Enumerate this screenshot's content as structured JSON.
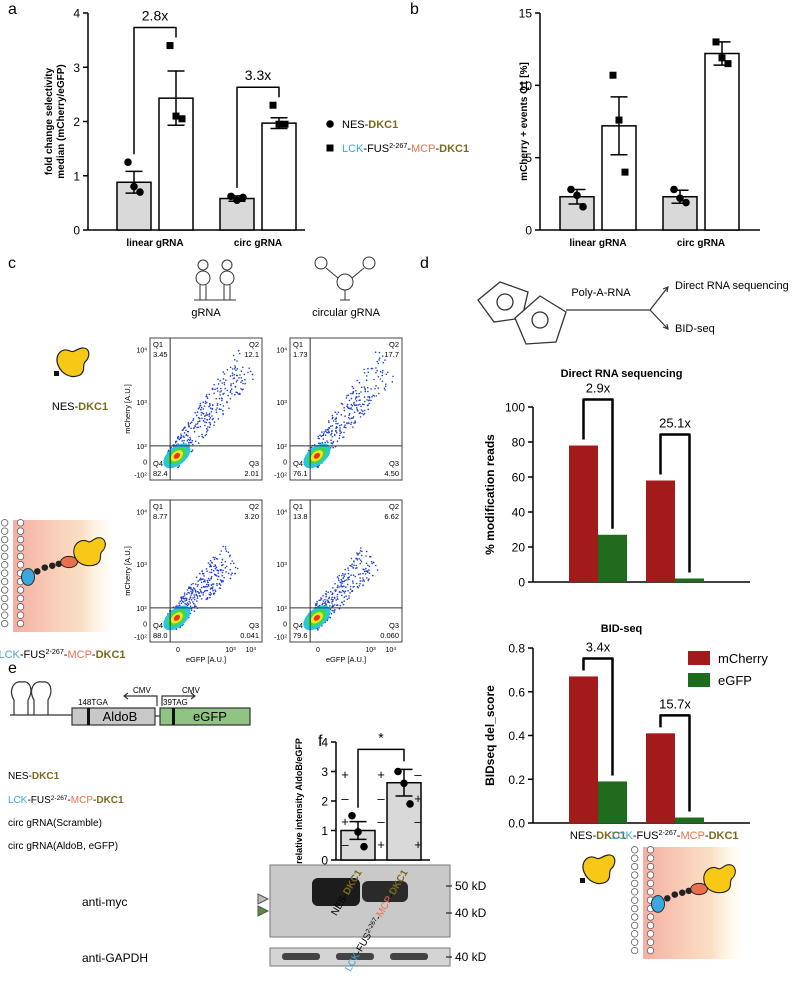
{
  "panel_labels": [
    "a",
    "b",
    "c",
    "d",
    "e",
    "f"
  ],
  "chart_data": [
    {
      "type": "bar",
      "ylabel": [
        "fold change selectivity",
        "median (mCherry/eGFP)"
      ],
      "categories": [
        "linear gRNA",
        "circ gRNA"
      ],
      "series": [
        {
          "name": [
            {
              "text": "NES-"
            },
            {
              "text": "DKC1",
              "color": "#7a6a1f",
              "bold": true
            }
          ],
          "color": "#d9d9d9",
          "marker": "circle",
          "values": [
            0.88,
            0.58
          ],
          "errors": [
            0.2,
            0.05
          ],
          "points": [
            [
              1.25,
              0.8,
              0.7
            ],
            [
              0.62,
              0.55,
              0.6
            ]
          ]
        },
        {
          "name": [
            {
              "text": "LCK",
              "color": "#3aa8de"
            },
            {
              "text": "-FUS"
            },
            {
              "text": "2-267",
              "sup": true
            },
            {
              "text": "-"
            },
            {
              "text": "MCP",
              "color": "#e8704f"
            },
            {
              "text": "-"
            },
            {
              "text": "DKC1",
              "color": "#7a6a1f",
              "bold": true
            }
          ],
          "color": "#ffffff",
          "marker": "square",
          "values": [
            2.43,
            1.97
          ],
          "errors": [
            0.5,
            0.1
          ],
          "points": [
            [
              3.4,
              2.1,
              2.05
            ],
            [
              2.3,
              1.95,
              1.95
            ]
          ]
        }
      ],
      "ylim": [
        0,
        4
      ],
      "yticks": [
        0,
        1,
        2,
        3,
        4
      ],
      "annotations": [
        "2.8x",
        "3.3x"
      ]
    },
    {
      "type": "bar",
      "ylabel": "mCherry + events Q1 [%]",
      "categories": [
        "linear gRNA",
        "circ gRNA"
      ],
      "series": [
        {
          "color": "#d9d9d9",
          "marker": "circle",
          "values": [
            2.3,
            2.3
          ],
          "errors": [
            0.5,
            0.45
          ],
          "points": [
            [
              2.8,
              2.4,
              1.6
            ],
            [
              2.8,
              2.2,
              1.9
            ]
          ]
        },
        {
          "color": "#ffffff",
          "marker": "square",
          "values": [
            7.2,
            12.2
          ],
          "errors": [
            2.0,
            0.8
          ],
          "points": [
            [
              10.7,
              7.6,
              4.0
            ],
            [
              13.0,
              11.9,
              11.5
            ]
          ]
        }
      ],
      "ylim": [
        0,
        15
      ],
      "yticks": [
        0,
        5,
        10,
        15
      ]
    },
    {
      "type": "bar",
      "title": "Direct RNA sequencing",
      "ylabel": "% modification reads",
      "series": [
        {
          "color": "#a31a1a",
          "values": [
            78,
            58
          ]
        },
        {
          "color": "#1e6b1e",
          "values": [
            27,
            2
          ]
        }
      ],
      "ylim": [
        0,
        100
      ],
      "yticks": [
        0,
        20,
        40,
        60,
        80,
        100
      ],
      "annotations": [
        "2.9x",
        "25.1x"
      ]
    },
    {
      "type": "bar",
      "title": "BID-seq",
      "ylabel": "BIDseq del_score",
      "categories": [
        [
          {
            "text": "NES-"
          },
          {
            "text": "DKC1",
            "color": "#7a6a1f",
            "bold": true
          }
        ],
        [
          {
            "text": "LCK",
            "color": "#3aa8de"
          },
          {
            "text": "-FUS"
          },
          {
            "text": "2-267",
            "sup": true
          },
          {
            "text": "-"
          },
          {
            "text": "MCP",
            "color": "#e8704f"
          },
          {
            "text": "-"
          },
          {
            "text": "DKC1",
            "color": "#7a6a1f",
            "bold": true
          }
        ]
      ],
      "series": [
        {
          "name": "mCherry",
          "color": "#a31a1a",
          "values": [
            0.67,
            0.41
          ]
        },
        {
          "name": "eGFP",
          "color": "#1e6b1e",
          "values": [
            0.19,
            0.025
          ]
        }
      ],
      "ylim": [
        0,
        0.8
      ],
      "yticks": [
        {
          "value": 0,
          "label": "0.0"
        },
        0.2,
        0.4,
        0.6,
        0.8
      ],
      "annotations": [
        "3.4x",
        "15.7x"
      ],
      "legend": "right"
    },
    {
      "type": "bar",
      "ylabel": "relative intensity AldoB/eGFP",
      "categories": [
        [
          {
            "text": "NES-"
          },
          {
            "text": "DKC1",
            "color": "#7a6a1f",
            "bold": true
          }
        ],
        [
          {
            "text": "LCK",
            "color": "#3aa8de"
          },
          {
            "text": "-FUS"
          },
          {
            "text": "2-267",
            "sup": true
          },
          {
            "text": "-"
          },
          {
            "text": "MCP",
            "color": "#e8704f"
          },
          {
            "text": "-"
          },
          {
            "text": "DKC1",
            "color": "#7a6a1f",
            "bold": true
          }
        ]
      ],
      "series": [
        {
          "color": "#d9d9d9",
          "marker": "circle",
          "values": [
            1.0,
            2.62
          ],
          "errors": [
            0.3,
            0.45
          ],
          "points": [
            [
              1.5,
              0.95,
              0.45
            ],
            [
              3.0,
              2.6,
              1.9
            ]
          ]
        }
      ],
      "ylim": [
        0,
        4
      ],
      "yticks": [
        0,
        1,
        2,
        3,
        4
      ],
      "annotations": [
        "*"
      ]
    }
  ],
  "flow": {
    "columns": [
      "gRNA",
      "circular gRNA"
    ],
    "rows": [
      [
        {
          "text": "NES-"
        },
        {
          "text": "DKC1",
          "color": "#7a6a1f",
          "bold": true
        }
      ],
      [
        {
          "text": "LCK",
          "color": "#3aa8de"
        },
        {
          "text": "-FUS"
        },
        {
          "text": "2-267",
          "sup": true
        },
        {
          "text": "-"
        },
        {
          "text": "MCP",
          "color": "#e8704f"
        },
        {
          "text": "-"
        },
        {
          "text": "DKC1",
          "color": "#7a6a1f",
          "bold": true
        }
      ]
    ],
    "ylabel": "mCherry [A.U.]",
    "xlabel": "eGFP [A.U.]",
    "yticks": [
      {
        "text": "10",
        "sup": "4"
      },
      {
        "text": "10",
        "sup": "3"
      },
      {
        "text": "10",
        "sup": "2"
      },
      {
        "text": "0"
      },
      {
        "text": "-10",
        "sup": "2"
      }
    ],
    "xticks": [
      {
        "text": "0"
      },
      {
        "text": "10",
        "sup": "3"
      },
      {
        "text": "10",
        "sup": "4"
      }
    ],
    "quadrants": [
      "Q1",
      "Q2",
      "Q3",
      "Q4"
    ],
    "plots": [
      [
        [
          "3.45",
          "12.1",
          "2.01",
          "82.4"
        ],
        [
          "1.73",
          "17.7",
          "4.50",
          "76.1"
        ]
      ],
      [
        [
          "8.77",
          "3.20",
          "0.041",
          "88.0"
        ],
        [
          "13.8",
          "6.62",
          "0.060",
          "79.6"
        ]
      ]
    ]
  },
  "schematic_d": {
    "input": "Poly-A-RNA",
    "outputs": [
      "Direct RNA sequencing",
      "BID-seq"
    ]
  },
  "construct_e": {
    "stop1": "148TGA",
    "gene1": "AldoB",
    "promoter1": "CMV",
    "promoter2": "CMV",
    "stop2": "39TAG",
    "gene2": "eGFP"
  },
  "table_e": {
    "rows": [
      {
        "label": [
          {
            "text": "NES-"
          },
          {
            "text": "DKC1",
            "color": "#7a6a1f",
            "bold": true
          }
        ],
        "marks": [
          "+",
          "+",
          "–"
        ]
      },
      {
        "label": [
          {
            "text": "LCK",
            "color": "#3aa8de"
          },
          {
            "text": "-FUS"
          },
          {
            "text": "2-267",
            "sup": true
          },
          {
            "text": "-"
          },
          {
            "text": "MCP",
            "color": "#e8704f"
          },
          {
            "text": "-"
          },
          {
            "text": "DKC1",
            "color": "#7a6a1f",
            "bold": true
          }
        ],
        "marks": [
          "–",
          "–",
          "+"
        ]
      },
      {
        "label": [
          {
            "text": "circ gRNA(Scramble)"
          }
        ],
        "marks": [
          "+",
          "–",
          "–"
        ]
      },
      {
        "label": [
          {
            "text": "circ gRNA(AldoB, eGFP)"
          }
        ],
        "marks": [
          "–",
          "+",
          "+"
        ]
      }
    ]
  },
  "blot_e": {
    "antibodies": [
      "anti-myc",
      "anti-GAPDH"
    ],
    "markers": [
      "50 kD",
      "40 kD",
      "40 kD"
    ]
  }
}
